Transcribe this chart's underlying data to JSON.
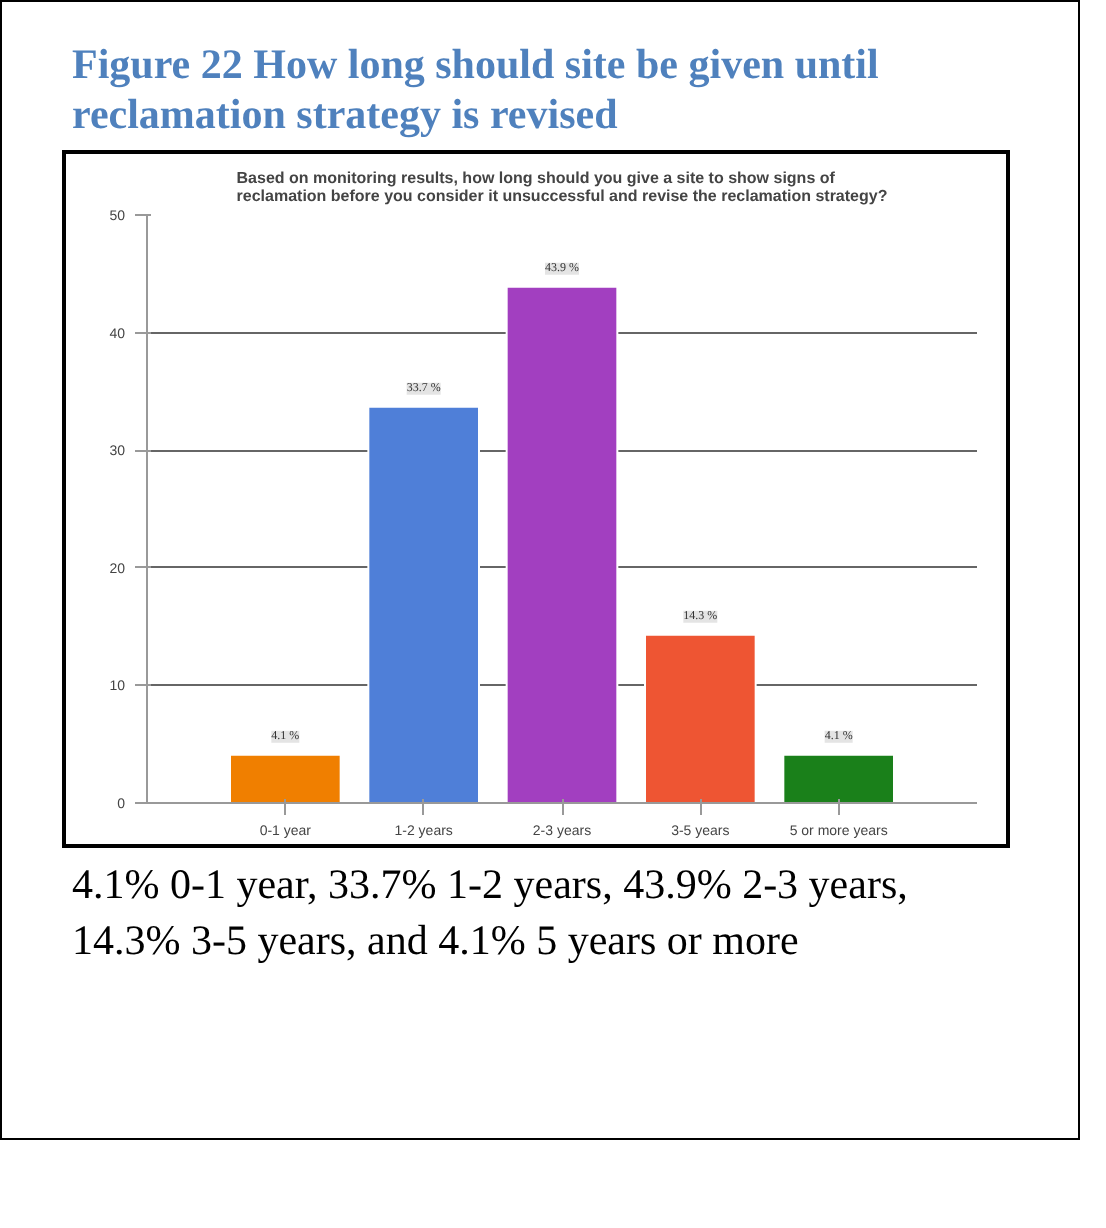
{
  "chart_data": {
    "type": "bar",
    "title": "Figure 22 How long should site be given until reclamation strategy is revised",
    "subtitle": "Based on monitoring results, how long should you give a site to show signs of reclamation before you consider it unsuccessful and revise the reclamation strategy?",
    "categories": [
      "0-1 year",
      "1-2 years",
      "2-3 years",
      "3-5 years",
      "5 or more years"
    ],
    "values": [
      4.1,
      33.7,
      43.9,
      14.3,
      4.1
    ],
    "colors": [
      "#f07f00",
      "#4f7fd8",
      "#a23fc0",
      "#ee5533",
      "#1a801a"
    ],
    "value_labels": [
      "4.1 %",
      "33.7 %",
      "43.9 %",
      "14.3 %",
      "4.1 %"
    ],
    "ylim": [
      0,
      50
    ],
    "yticks": [
      0,
      10,
      20,
      30,
      40,
      50
    ],
    "grid": "y",
    "annotations": [
      "4.1% 0-1 year, 33.7% 1-2 years, 43.9% 2-3 years, 14.3% 3-5 years, and 4.1% 5 years or more"
    ]
  }
}
